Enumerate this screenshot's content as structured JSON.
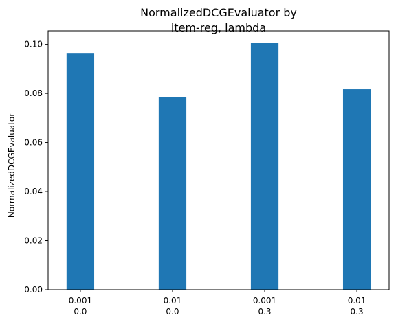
{
  "chart_data": {
    "type": "bar",
    "title_lines": [
      "NormalizedDCGEvaluator by",
      "item-reg, lambda"
    ],
    "xlabel": "",
    "ylabel": "NormalizedDCGEvaluator",
    "categories": [
      [
        "0.001",
        "0.0"
      ],
      [
        "0.01",
        "0.0"
      ],
      [
        "0.001",
        "0.3"
      ],
      [
        "0.01",
        "0.3"
      ]
    ],
    "values": [
      0.0965,
      0.0785,
      0.1005,
      0.0817
    ],
    "ylim": [
      0,
      0.1055
    ],
    "yticks": [
      "0.00",
      "0.02",
      "0.04",
      "0.06",
      "0.08",
      "0.10"
    ],
    "ytick_values": [
      0,
      0.02,
      0.04,
      0.06,
      0.08,
      0.1
    ],
    "bar_color": "#1f77b4",
    "grid": false,
    "legend": "none"
  }
}
